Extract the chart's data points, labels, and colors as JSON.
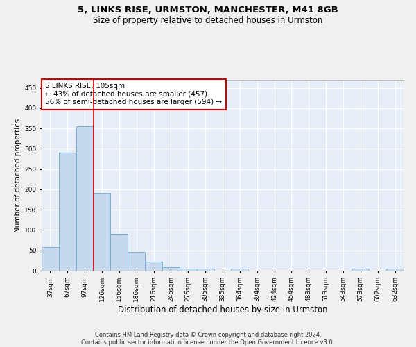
{
  "title": "5, LINKS RISE, URMSTON, MANCHESTER, M41 8GB",
  "subtitle": "Size of property relative to detached houses in Urmston",
  "xlabel": "Distribution of detached houses by size in Urmston",
  "ylabel": "Number of detached properties",
  "categories": [
    "37sqm",
    "67sqm",
    "97sqm",
    "126sqm",
    "156sqm",
    "186sqm",
    "216sqm",
    "245sqm",
    "275sqm",
    "305sqm",
    "335sqm",
    "364sqm",
    "394sqm",
    "424sqm",
    "454sqm",
    "483sqm",
    "513sqm",
    "543sqm",
    "573sqm",
    "602sqm",
    "632sqm"
  ],
  "values": [
    58,
    290,
    355,
    192,
    90,
    46,
    22,
    8,
    5,
    5,
    0,
    5,
    0,
    0,
    0,
    0,
    0,
    0,
    5,
    0,
    5
  ],
  "bar_color": "#c5d8ee",
  "bar_edge_color": "#6aaad4",
  "bg_color": "#e8eef7",
  "grid_color": "#ffffff",
  "annotation_text": "5 LINKS RISE: 105sqm\n← 43% of detached houses are smaller (457)\n56% of semi-detached houses are larger (594) →",
  "annotation_box_color": "#ffffff",
  "annotation_box_edge": "#cc0000",
  "vline_x_index": 2,
  "vline_color": "#cc0000",
  "ylim": [
    0,
    470
  ],
  "yticks": [
    0,
    50,
    100,
    150,
    200,
    250,
    300,
    350,
    400,
    450
  ],
  "footnote": "Contains HM Land Registry data © Crown copyright and database right 2024.\nContains public sector information licensed under the Open Government Licence v3.0.",
  "title_fontsize": 9.5,
  "subtitle_fontsize": 8.5,
  "xlabel_fontsize": 8.5,
  "ylabel_fontsize": 7.5,
  "tick_fontsize": 6.5,
  "annot_fontsize": 7.5,
  "footnote_fontsize": 6.0
}
